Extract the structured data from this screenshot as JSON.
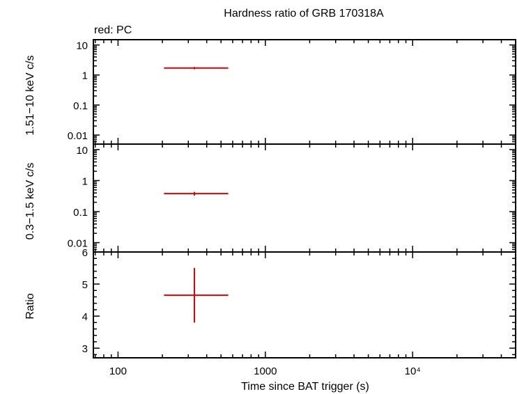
{
  "chart_data": {
    "type": "scatter",
    "title": "Hardness ratio of GRB 170318A",
    "subtitle": "red: PC",
    "xlabel": "Time since BAT trigger (s)",
    "x_scale": "log",
    "xlim": [
      68,
      50000
    ],
    "x_ticks": [
      {
        "value": 100,
        "label": "100"
      },
      {
        "value": 1000,
        "label": "1000"
      },
      {
        "value": 10000,
        "label": "10⁴"
      }
    ],
    "series_color": "#e00000",
    "panels": [
      {
        "id": "hard",
        "ylabel": "1.51−10 keV c/s",
        "y_scale": "log",
        "ylim": [
          0.005,
          15
        ],
        "y_ticks": [
          {
            "value": 10,
            "label": "10"
          },
          {
            "value": 1,
            "label": "1"
          },
          {
            "value": 0.1,
            "label": "0.1"
          },
          {
            "value": 0.01,
            "label": "0.01"
          }
        ],
        "points": [
          {
            "x": 330,
            "xlo": 205,
            "xhi": 560,
            "y": 1.7,
            "ylo": 1.55,
            "yhi": 1.85
          }
        ]
      },
      {
        "id": "soft",
        "ylabel": "0.3−1.5 keV c/s",
        "y_scale": "log",
        "ylim": [
          0.005,
          15
        ],
        "y_ticks": [
          {
            "value": 10,
            "label": "10"
          },
          {
            "value": 1,
            "label": "1"
          },
          {
            "value": 0.1,
            "label": "0.1"
          },
          {
            "value": 0.01,
            "label": "0.01"
          }
        ],
        "points": [
          {
            "x": 330,
            "xlo": 205,
            "xhi": 560,
            "y": 0.38,
            "ylo": 0.33,
            "yhi": 0.43
          }
        ]
      },
      {
        "id": "ratio",
        "ylabel": "Ratio",
        "y_scale": "linear",
        "ylim": [
          2.7,
          6.0
        ],
        "y_ticks": [
          {
            "value": 6,
            "label": "6"
          },
          {
            "value": 5,
            "label": "5"
          },
          {
            "value": 4,
            "label": "4"
          },
          {
            "value": 3,
            "label": "3"
          }
        ],
        "points": [
          {
            "x": 330,
            "xlo": 205,
            "xhi": 560,
            "y": 4.65,
            "ylo": 3.8,
            "yhi": 5.5
          }
        ]
      }
    ]
  }
}
